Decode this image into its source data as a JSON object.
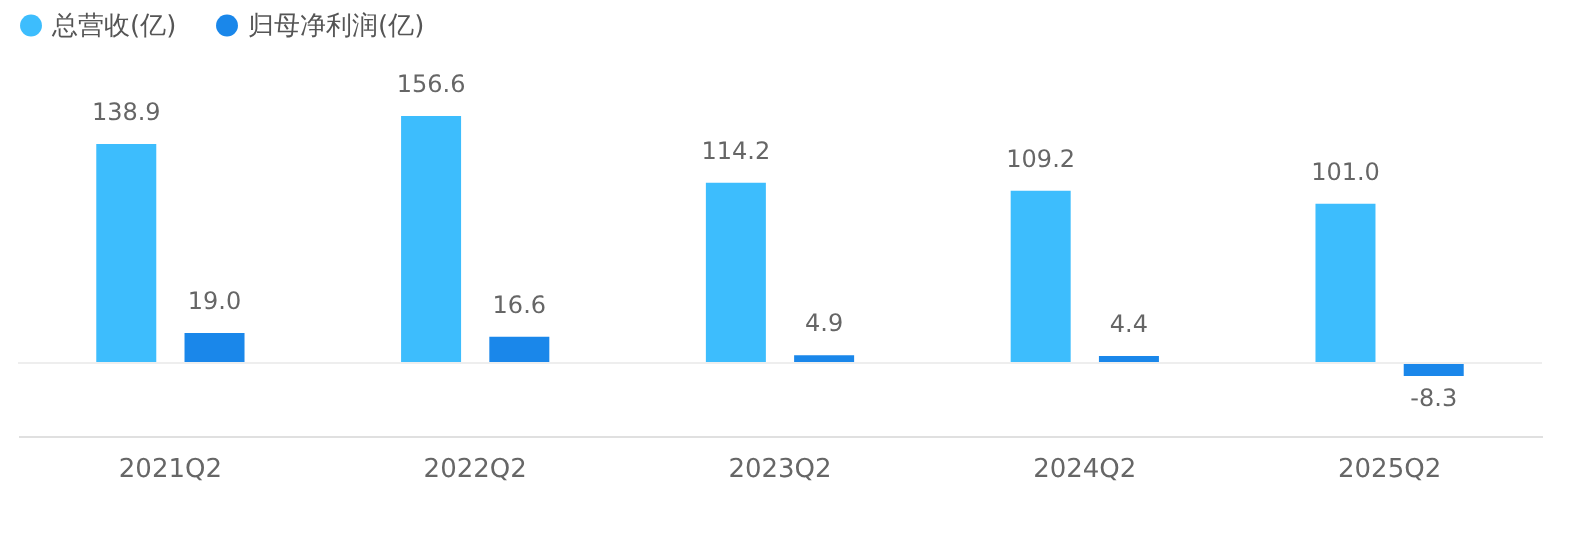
{
  "chart_data": {
    "type": "bar",
    "categories": [
      "2021Q2",
      "2022Q2",
      "2023Q2",
      "2024Q2",
      "2025Q2"
    ],
    "series": [
      {
        "name": "总营收(亿)",
        "color": "#3dbdfd",
        "values": [
          138.9,
          156.6,
          114.2,
          109.2,
          101.0
        ],
        "value_labels": [
          "138.9",
          "156.6",
          "114.2",
          "109.2",
          "101.0"
        ]
      },
      {
        "name": "归母净利润(亿)",
        "color": "#1a87ea",
        "values": [
          19.0,
          16.6,
          4.9,
          4.4,
          -8.3
        ],
        "value_labels": [
          "19.0",
          "16.6",
          "4.9",
          "4.4",
          "-8.3"
        ]
      }
    ],
    "legend": "top left",
    "ref_lines": [
      {
        "axis": "y",
        "value": 0,
        "color": "#eeeeee"
      }
    ]
  }
}
